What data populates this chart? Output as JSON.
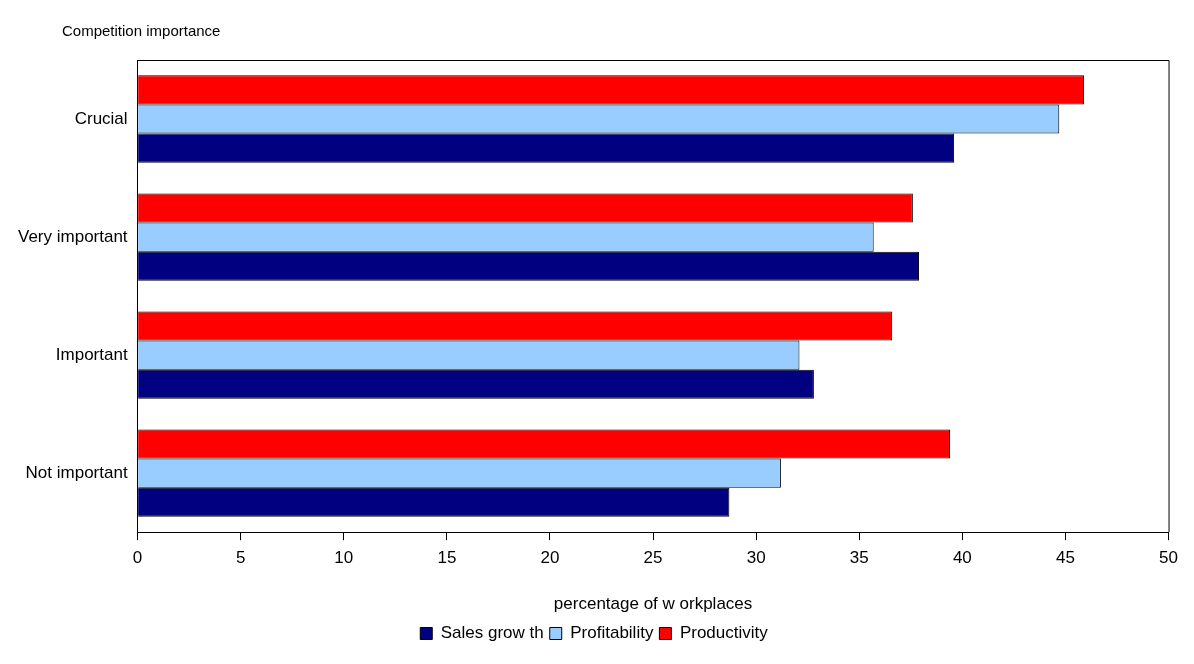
{
  "chart_data": {
    "type": "bar",
    "orientation": "horizontal",
    "ylabel": "Competition importance",
    "xlabel": "percentage of w orkplaces",
    "categories": [
      "Crucial",
      "Very important",
      "Important",
      "Not important"
    ],
    "series": [
      {
        "name": "Sales grow th",
        "color": "#000080",
        "values": [
          39.6,
          37.9,
          32.8,
          28.7
        ]
      },
      {
        "name": "Profitability",
        "color": "#99ccff",
        "values": [
          44.7,
          35.7,
          32.1,
          31.2
        ]
      },
      {
        "name": "Productivity",
        "color": "#ff0000",
        "values": [
          45.9,
          37.6,
          36.6,
          39.4
        ]
      }
    ],
    "xlim": [
      0,
      50
    ],
    "xticks": [
      0,
      5,
      10,
      15,
      20,
      25,
      30,
      35,
      40,
      45,
      50
    ],
    "grid": false,
    "legend": "bottom"
  }
}
